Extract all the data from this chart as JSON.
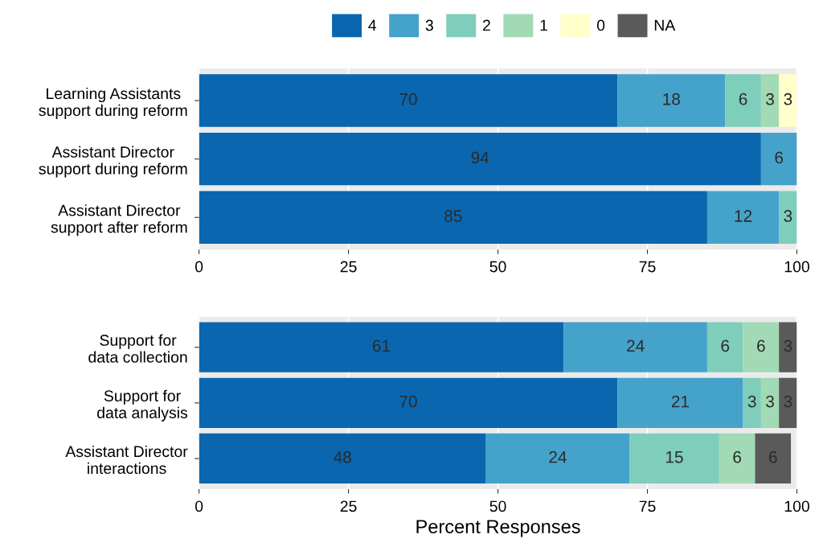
{
  "chart_data": [
    {
      "type": "bar",
      "orientation": "horizontal",
      "stacked": true,
      "data_labels": true,
      "grid": "x",
      "legend": "top",
      "categories": [
        "Learning Assistants\nsupport during reform",
        "Assistant Director\nsupport during reform",
        "Assistant Director\nsupport after reform"
      ],
      "xlim": [
        0,
        100
      ],
      "xticks": [
        0,
        25,
        50,
        75,
        100
      ],
      "series": [
        {
          "name": "4",
          "color": "#0a66ae",
          "values": [
            70,
            94,
            85
          ]
        },
        {
          "name": "3",
          "color": "#45a2cb",
          "values": [
            18,
            6,
            12
          ]
        },
        {
          "name": "2",
          "color": "#7fcdbb",
          "values": [
            6,
            null,
            3
          ]
        },
        {
          "name": "1",
          "color": "#a1dab4",
          "values": [
            3,
            null,
            null
          ]
        },
        {
          "name": "0",
          "color": "#ffffcc",
          "values": [
            3,
            null,
            null
          ]
        }
      ]
    },
    {
      "type": "bar",
      "orientation": "horizontal",
      "stacked": true,
      "data_labels": true,
      "grid": "x",
      "xlabel": "Percent Responses",
      "categories": [
        "Support for\ndata collection",
        "Support for\ndata analysis",
        "Assistant Director\ninteractions"
      ],
      "xlim": [
        0,
        100
      ],
      "xticks": [
        0,
        25,
        50,
        75,
        100
      ],
      "series": [
        {
          "name": "4",
          "color": "#0a66ae",
          "values": [
            61,
            70,
            48
          ]
        },
        {
          "name": "3",
          "color": "#45a2cb",
          "values": [
            24,
            21,
            24
          ]
        },
        {
          "name": "2",
          "color": "#7fcdbb",
          "values": [
            6,
            3,
            15
          ]
        },
        {
          "name": "1",
          "color": "#a1dab4",
          "values": [
            6,
            3,
            6
          ]
        },
        {
          "name": "NA",
          "color": "#5a5a5a",
          "values": [
            3,
            3,
            6
          ]
        }
      ]
    }
  ]
}
